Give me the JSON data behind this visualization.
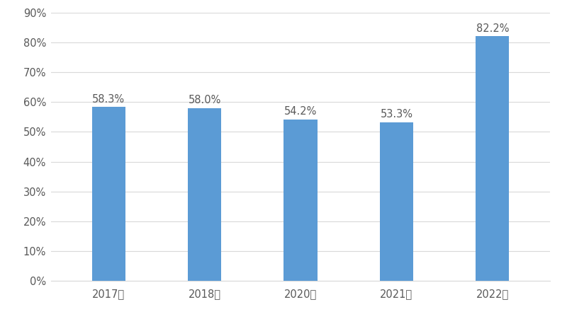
{
  "categories": [
    "2017年",
    "2018年",
    "2020年",
    "2021年",
    "2022年"
  ],
  "values": [
    58.3,
    58.0,
    54.2,
    53.3,
    82.2
  ],
  "bar_color": "#5b9bd5",
  "background_color": "#ffffff",
  "ylim": [
    0,
    90
  ],
  "yticks": [
    0,
    10,
    20,
    30,
    40,
    50,
    60,
    70,
    80,
    90
  ],
  "ytick_labels": [
    "0%",
    "10%",
    "20%",
    "30%",
    "40%",
    "50%",
    "60%",
    "70%",
    "80%",
    "90%"
  ],
  "grid_color": "#d9d9d9",
  "label_fontsize": 10.5,
  "tick_fontsize": 10.5,
  "bar_width": 0.35,
  "value_labels": [
    "58.3%",
    "58.0%",
    "54.2%",
    "53.3%",
    "82.2%"
  ],
  "label_color": "#595959",
  "tick_color": "#595959"
}
